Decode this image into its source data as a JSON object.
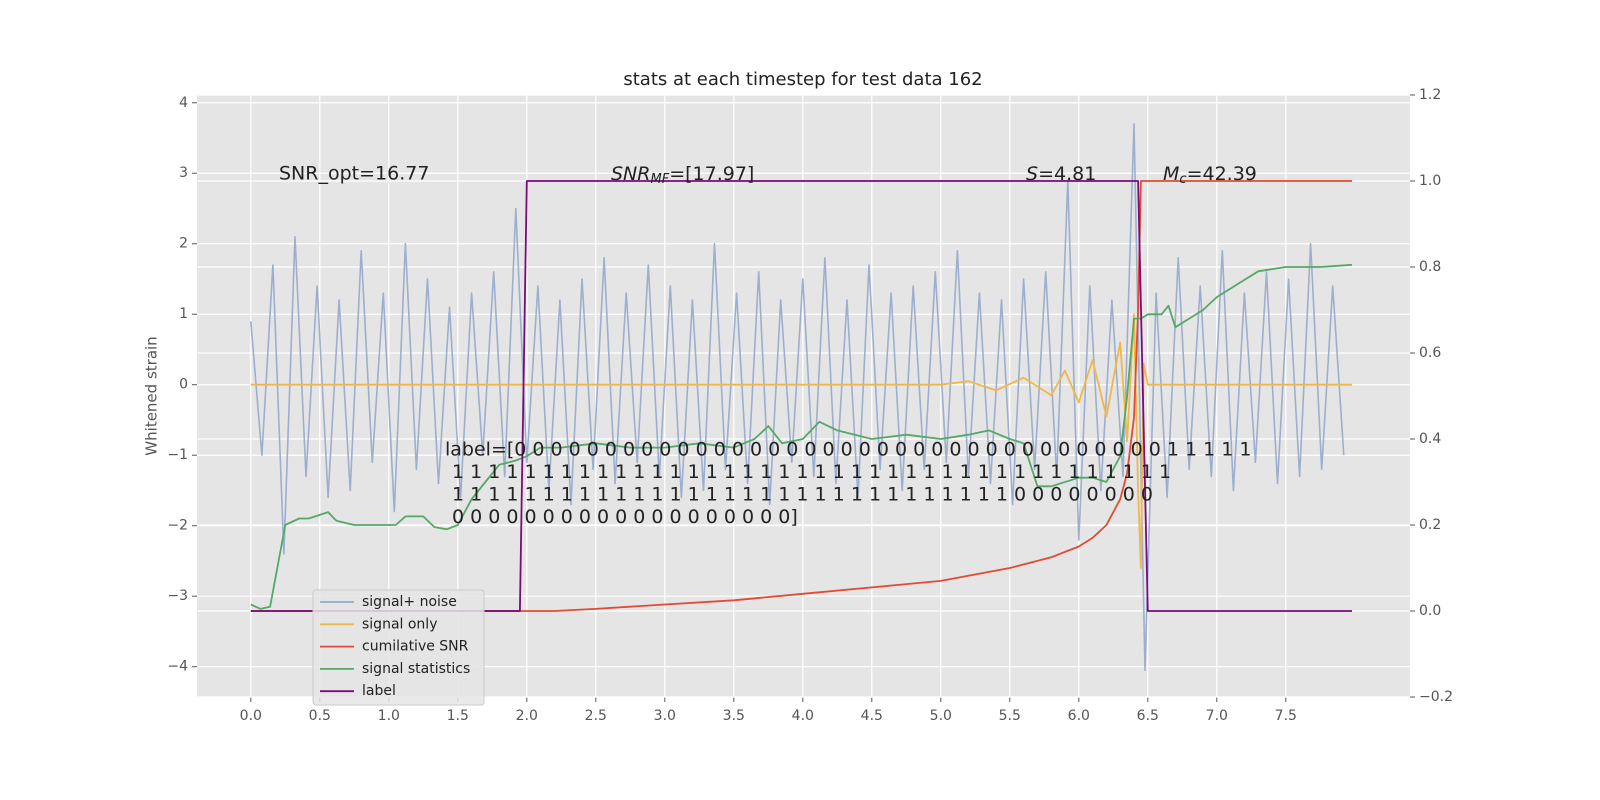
{
  "chart_data": {
    "type": "line",
    "title": "stats at each timestep for test data 162",
    "ylabel": "Whitened strain",
    "xlim": [
      -0.39,
      8.4
    ],
    "ylim": [
      -4.43,
      4.11
    ],
    "y2lim": [
      -0.2,
      1.2
    ],
    "grid": true,
    "legend": "lower left",
    "xticks": [
      {
        "value": 0,
        "label": "0.0"
      },
      0.5,
      {
        "value": 1,
        "label": "1.0"
      },
      1.5,
      {
        "value": 2,
        "label": "2.0"
      },
      2.5,
      {
        "value": 3,
        "label": "3.0"
      },
      3.5,
      {
        "value": 4,
        "label": "4.0"
      },
      4.5,
      {
        "value": 5,
        "label": "5.0"
      },
      5.5,
      {
        "value": 6,
        "label": "6.0"
      },
      6.5,
      {
        "value": 7,
        "label": "7.0"
      },
      7.5
    ],
    "yticks": [
      {
        "value": -4,
        "label": "−4"
      },
      {
        "value": -3,
        "label": "−3"
      },
      {
        "value": -2,
        "label": "−2"
      },
      {
        "value": -1,
        "label": "−1"
      },
      0,
      1,
      2,
      3,
      4
    ],
    "y2ticks": [
      {
        "value": -0.2,
        "label": "−0.2"
      },
      {
        "value": 0,
        "label": "0.0"
      },
      0.2,
      0.4,
      0.6,
      0.8,
      {
        "value": 1,
        "label": "1.0"
      },
      1.2
    ],
    "series": [
      {
        "name": "signal+ noise",
        "color": "#94a8cc",
        "axis": "y",
        "x": [
          0,
          0.08,
          0.16,
          0.24,
          0.32,
          0.4,
          0.48,
          0.56,
          0.64,
          0.72,
          0.8,
          0.88,
          0.96,
          1.04,
          1.12,
          1.2,
          1.28,
          1.36,
          1.44,
          1.52,
          1.6,
          1.68,
          1.76,
          1.84,
          1.92,
          2.0,
          2.08,
          2.16,
          2.24,
          2.32,
          2.4,
          2.48,
          2.56,
          2.64,
          2.72,
          2.8,
          2.88,
          2.96,
          3.04,
          3.12,
          3.2,
          3.28,
          3.36,
          3.44,
          3.52,
          3.6,
          3.68,
          3.76,
          3.84,
          3.92,
          4.0,
          4.08,
          4.16,
          4.24,
          4.32,
          4.4,
          4.48,
          4.56,
          4.64,
          4.72,
          4.8,
          4.88,
          4.96,
          5.04,
          5.12,
          5.2,
          5.28,
          5.36,
          5.44,
          5.52,
          5.6,
          5.68,
          5.76,
          5.84,
          5.92,
          6.0,
          6.08,
          6.16,
          6.24,
          6.32,
          6.4,
          6.48,
          6.56,
          6.64,
          6.72,
          6.8,
          6.88,
          6.96,
          7.04,
          7.12,
          7.2,
          7.28,
          7.36,
          7.44,
          7.52,
          7.6,
          7.68,
          7.76,
          7.84,
          7.92
        ],
        "values": [
          0.9,
          -1.0,
          1.7,
          -2.4,
          2.1,
          -1.3,
          1.4,
          -1.6,
          1.2,
          -1.5,
          1.9,
          -1.1,
          1.3,
          -1.8,
          2.0,
          -1.2,
          1.5,
          -1.4,
          1.1,
          -1.6,
          1.3,
          -1.0,
          1.6,
          -1.3,
          2.5,
          -1.1,
          1.4,
          -1.5,
          1.2,
          -1.7,
          1.5,
          -1.2,
          1.8,
          -1.4,
          1.3,
          -1.1,
          1.7,
          -1.3,
          1.4,
          -1.6,
          1.2,
          -1.5,
          2.0,
          -1.2,
          1.3,
          -1.4,
          1.6,
          -1.7,
          1.2,
          -1.1,
          1.5,
          -1.3,
          1.8,
          -1.4,
          1.2,
          -1.6,
          1.7,
          -1.2,
          1.3,
          -1.5,
          1.4,
          -1.2,
          1.6,
          -1.1,
          1.9,
          -1.3,
          1.3,
          -1.4,
          1.2,
          -1.7,
          1.5,
          -1.2,
          1.6,
          -1.3,
          2.9,
          -2.2,
          1.4,
          -1.5,
          1.2,
          -1.3,
          3.7,
          -4.05,
          1.3,
          -1.6,
          1.8,
          -1.2,
          1.4,
          -1.3,
          1.9,
          -1.5,
          1.3,
          -1.1,
          1.6,
          -1.4,
          1.5,
          -1.3,
          2.0,
          -1.2,
          1.4,
          -1.0
        ]
      },
      {
        "name": "signal only",
        "color": "#f0b74a",
        "axis": "y",
        "x": [
          0,
          5.0,
          5.2,
          5.4,
          5.6,
          5.8,
          5.9,
          6.0,
          6.1,
          6.2,
          6.3,
          6.35,
          6.4,
          6.43,
          6.45,
          6.47,
          6.5,
          7.98
        ],
        "values": [
          0,
          0,
          0.05,
          -0.08,
          0.1,
          -0.15,
          0.2,
          -0.25,
          0.35,
          -0.45,
          0.6,
          -0.8,
          1.0,
          -1.5,
          -2.6,
          0.3,
          0,
          0
        ]
      },
      {
        "name": "cumilative SNR",
        "color": "#e24a33",
        "axis": "y2",
        "x": [
          0,
          2.2,
          2.5,
          3.0,
          3.5,
          4.0,
          4.5,
          5.0,
          5.5,
          5.8,
          6.0,
          6.1,
          6.2,
          6.3,
          6.35,
          6.4,
          6.43,
          6.45,
          7.98
        ],
        "values": [
          0,
          0,
          0.005,
          0.015,
          0.025,
          0.04,
          0.055,
          0.07,
          0.1,
          0.125,
          0.15,
          0.17,
          0.2,
          0.26,
          0.32,
          0.45,
          0.7,
          1.0,
          1.0
        ]
      },
      {
        "name": "signal statistics",
        "color": "#55a868",
        "axis": "y2",
        "x": [
          0,
          0.07,
          0.14,
          0.25,
          0.35,
          0.42,
          0.56,
          0.62,
          0.75,
          0.9,
          1.0,
          1.05,
          1.12,
          1.25,
          1.33,
          1.42,
          1.5,
          1.6,
          1.7,
          1.8,
          1.92,
          2.0,
          2.1,
          2.25,
          2.5,
          2.75,
          3.0,
          3.25,
          3.5,
          3.65,
          3.75,
          3.85,
          4.0,
          4.12,
          4.25,
          4.5,
          4.75,
          5.0,
          5.2,
          5.35,
          5.5,
          5.6,
          5.7,
          5.8,
          6.0,
          6.1,
          6.2,
          6.3,
          6.35,
          6.4,
          6.45,
          6.5,
          6.6,
          6.65,
          6.7,
          6.8,
          6.9,
          7.0,
          7.1,
          7.2,
          7.3,
          7.5,
          7.75,
          7.98
        ],
        "values": [
          0.015,
          0.005,
          0.01,
          0.2,
          0.215,
          0.215,
          0.23,
          0.21,
          0.2,
          0.2,
          0.2,
          0.2,
          0.22,
          0.22,
          0.195,
          0.19,
          0.2,
          0.26,
          0.3,
          0.34,
          0.35,
          0.36,
          0.38,
          0.38,
          0.39,
          0.38,
          0.38,
          0.39,
          0.38,
          0.4,
          0.43,
          0.39,
          0.4,
          0.44,
          0.42,
          0.4,
          0.41,
          0.4,
          0.41,
          0.42,
          0.4,
          0.39,
          0.29,
          0.29,
          0.31,
          0.31,
          0.3,
          0.36,
          0.5,
          0.68,
          0.68,
          0.69,
          0.69,
          0.71,
          0.66,
          0.68,
          0.7,
          0.73,
          0.75,
          0.77,
          0.79,
          0.8,
          0.8,
          0.805
        ]
      },
      {
        "name": "label",
        "color": "#7b0a7b",
        "axis": "y2",
        "x": [
          0,
          1.95,
          2.0,
          6.43,
          6.5,
          7.98
        ],
        "values": [
          0,
          0,
          1,
          1,
          0,
          0
        ]
      }
    ],
    "annotations": {
      "snr_opt": "SNR_opt=16.77",
      "snr_mf": {
        "symbol": "SNR",
        "sub": "MF",
        "value": "=[17.97]"
      },
      "s": {
        "symbol": "S",
        "value": "=4.81"
      },
      "mc": {
        "symbol": "M",
        "sub": "c",
        "value": "=42.39"
      }
    },
    "label_text": [
      "label=[0 0 0 0 0 0 0 0 0 0 0 0 0 0 0 0 0 0 0 0 0 0 0 0 0 0 0 0 0 0 0 0 0 0 0 0 1 1 1 1 1",
      "1 1 1 1 1 1 1 1 1 1 1 1 1 1 1 1 1 1 1 1 1 1 1 1 1 1 1 1 1 1 1 1 1 1 1 1 1 1 1 1",
      "1 1 1 1 1 1 1 1 1 1 1 1 1 1 1 1 1 1 1 1 1 1 1 1 1 1 1 1 1 1 1 0 0 0 0 0 0 0 0",
      "0 0 0 0 0 0 0 0 0 0 0 0 0 0 0 0 0 0 0]"
    ]
  }
}
